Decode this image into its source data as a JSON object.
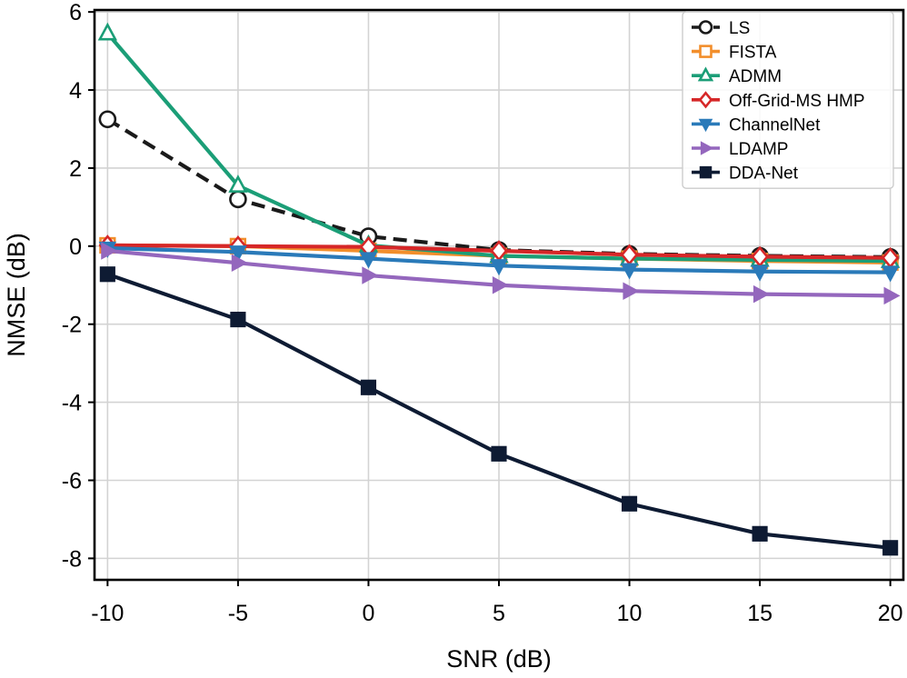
{
  "chart_data": {
    "type": "line",
    "title": "",
    "xlabel": "SNR (dB)",
    "ylabel": "NMSE (dB)",
    "x": [
      -10,
      -5,
      0,
      5,
      10,
      15,
      20
    ],
    "xlim": [
      -10.5,
      20.5
    ],
    "ylim": [
      -8.55,
      6.05
    ],
    "xticks": [
      -10,
      -5,
      0,
      5,
      10,
      15,
      20
    ],
    "yticks": [
      -8,
      -6,
      -4,
      -2,
      0,
      2,
      4,
      6
    ],
    "grid": true,
    "legend_position": "top-right",
    "series": [
      {
        "name": "LS",
        "values": [
          3.25,
          1.2,
          0.25,
          -0.1,
          -0.2,
          -0.25,
          -0.28
        ],
        "color": "#1a1a1a",
        "marker": "circle-open",
        "dashed": true
      },
      {
        "name": "FISTA",
        "values": [
          0.02,
          0.0,
          -0.12,
          -0.25,
          -0.32,
          -0.38,
          -0.42
        ],
        "color": "#f28e2b",
        "marker": "square-open",
        "dashed": false
      },
      {
        "name": "ADMM",
        "values": [
          5.45,
          1.55,
          0.02,
          -0.25,
          -0.32,
          -0.35,
          -0.38
        ],
        "color": "#1b9e77",
        "marker": "triangle-up-open",
        "dashed": false
      },
      {
        "name": "Off-Grid-MS HMP",
        "values": [
          0.02,
          0.0,
          -0.02,
          -0.12,
          -0.22,
          -0.27,
          -0.3
        ],
        "color": "#d62728",
        "marker": "diamond-open",
        "dashed": false
      },
      {
        "name": "ChannelNet",
        "values": [
          -0.05,
          -0.15,
          -0.32,
          -0.5,
          -0.6,
          -0.65,
          -0.67
        ],
        "color": "#2a7ab9",
        "marker": "triangle-down",
        "dashed": false
      },
      {
        "name": "LDAMP",
        "values": [
          -0.12,
          -0.43,
          -0.75,
          -1.0,
          -1.15,
          -1.23,
          -1.27
        ],
        "color": "#9467bd",
        "marker": "triangle-right",
        "dashed": false
      },
      {
        "name": "DDA-Net",
        "values": [
          -0.72,
          -1.88,
          -3.62,
          -5.32,
          -6.6,
          -7.37,
          -7.73
        ],
        "color": "#0e1b33",
        "marker": "square",
        "dashed": false
      }
    ]
  }
}
